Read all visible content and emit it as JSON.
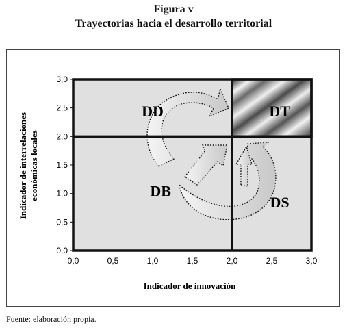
{
  "figure": {
    "label": "Figura v",
    "title": "Trayectorias hacia el desarrollo territorial",
    "source": "Fuente: elaboración propia."
  },
  "chart_data": {
    "type": "quadrant-diagram",
    "xlabel": "Indicador de innovación",
    "ylabel_line1": "Indicador de interrelaciones",
    "ylabel_line2": "económicas locales",
    "xlim": [
      0,
      3
    ],
    "ylim": [
      0,
      3
    ],
    "xticks": [
      "0,0",
      "0,5",
      "1,0",
      "1,5",
      "2,0",
      "2,5",
      "3,0"
    ],
    "yticks": [
      "0,0",
      "0,5",
      "1,0",
      "1,5",
      "2,0",
      "2,5",
      "3,0"
    ],
    "divider_x": 2.0,
    "divider_y": 2.0,
    "quadrants": [
      {
        "label": "DD",
        "x": 1.0,
        "y": 2.45
      },
      {
        "label": "DT",
        "x": 2.6,
        "y": 2.45
      },
      {
        "label": "DB",
        "x": 1.1,
        "y": 1.05
      },
      {
        "label": "DS",
        "x": 2.6,
        "y": 0.85
      }
    ],
    "colors": {
      "plot_bg": "#e0e0e0",
      "dt_dark": "#3a3a3a",
      "dt_light": "#f2f2f2",
      "grid_line": "#111111"
    }
  }
}
